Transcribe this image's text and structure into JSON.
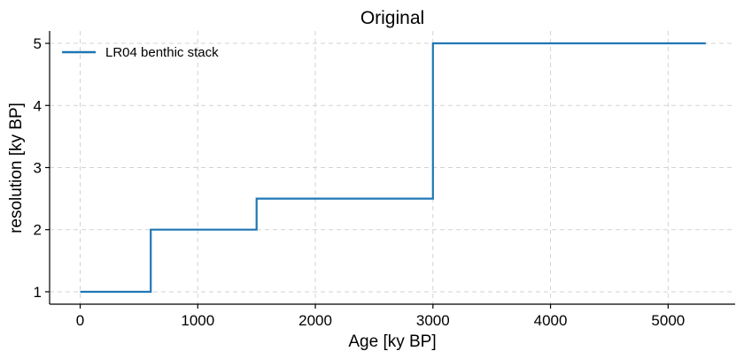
{
  "chart_data": {
    "type": "line",
    "title": "Original",
    "xlabel": "Age [ky BP]",
    "ylabel": "resolution [ky BP]",
    "xlim": [
      -260,
      5570
    ],
    "ylim": [
      0.8,
      5.2
    ],
    "xticks": [
      0,
      1000,
      2000,
      3000,
      4000,
      5000
    ],
    "yticks": [
      1,
      2,
      3,
      4,
      5
    ],
    "grid": true,
    "legend_position": "top-left",
    "step": true,
    "series": [
      {
        "name": "LR04 benthic stack",
        "color": "#1f77b4",
        "x": [
          0,
          600,
          600,
          1500,
          1500,
          3000,
          3000,
          5320
        ],
        "y": [
          1,
          1,
          2,
          2,
          2.5,
          2.5,
          5,
          5
        ]
      }
    ]
  }
}
